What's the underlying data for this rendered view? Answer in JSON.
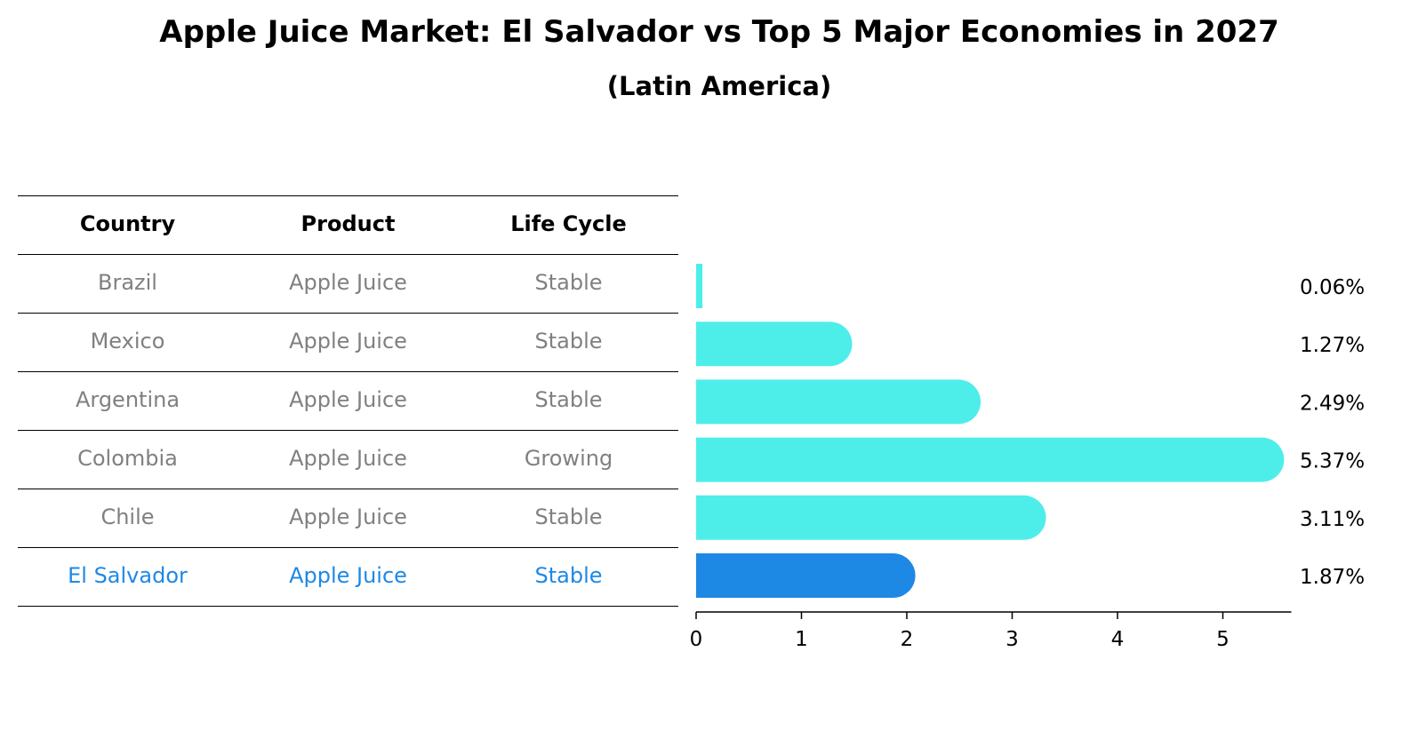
{
  "chart_data": {
    "type": "bar",
    "orientation": "horizontal",
    "title": "Apple Juice Market: El Salvador vs Top 5 Major Economies in 2027",
    "subtitle": "(Latin America)",
    "table": {
      "columns": [
        "Country",
        "Product",
        "Life Cycle"
      ],
      "rows": [
        {
          "country": "Brazil",
          "product": "Apple Juice",
          "life_cycle": "Stable"
        },
        {
          "country": "Mexico",
          "product": "Apple Juice",
          "life_cycle": "Stable"
        },
        {
          "country": "Argentina",
          "product": "Apple Juice",
          "life_cycle": "Stable"
        },
        {
          "country": "Colombia",
          "product": "Apple Juice",
          "life_cycle": "Growing"
        },
        {
          "country": "Chile",
          "product": "Apple Juice",
          "life_cycle": "Stable"
        },
        {
          "country": "El Salvador",
          "product": "Apple Juice",
          "life_cycle": "Stable"
        }
      ]
    },
    "categories": [
      "Brazil",
      "Mexico",
      "Argentina",
      "Colombia",
      "Chile",
      "El Salvador"
    ],
    "values": [
      0.06,
      1.27,
      2.49,
      5.37,
      3.11,
      1.87
    ],
    "value_labels": [
      "0.06%",
      "1.27%",
      "2.49%",
      "5.37%",
      "3.11%",
      "1.87%"
    ],
    "highlight": "El Salvador",
    "xlim": [
      0,
      5.65
    ],
    "xticks": [
      0,
      1,
      2,
      3,
      4,
      5
    ],
    "grid": false,
    "colors": {
      "bar": "#4deeea",
      "highlight_bar": "#1e88e5",
      "table_text": "#808080",
      "highlight_text": "#1e88e5"
    }
  }
}
